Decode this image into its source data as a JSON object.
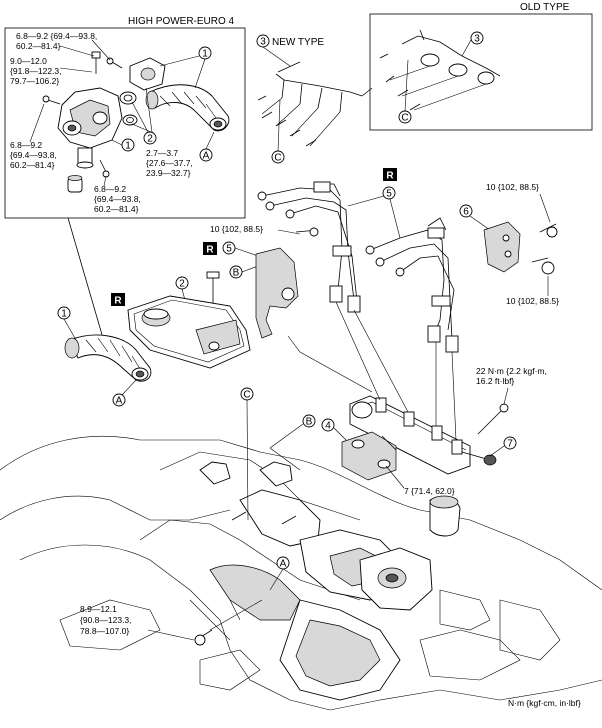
{
  "boxes": {
    "high_power": "HIGH POWER-EURO 4",
    "old_type": "OLD TYPE",
    "new_type": "NEW TYPE"
  },
  "callouts": {
    "c1": "1",
    "c2": "2",
    "c3": "3",
    "c4": "4",
    "c5": "5",
    "c6": "6",
    "c7": "7",
    "cA": "A",
    "cB": "B",
    "cC": "C"
  },
  "replace_mark": "R",
  "torques": {
    "t1a": "6.8—9.2 {69.4—93.8,",
    "t1b": "60.2—81.4}",
    "t2a": "9.0—12.0",
    "t2b": "{91.8—122.3,",
    "t2c": "79.7—106.2}",
    "t3a": "6.8—9.2",
    "t3b": "{69.4—93.8,",
    "t3c": "60.2—81.4}",
    "t4a": "2.7—3.7",
    "t4b": "{27.6—37.7,",
    "t4c": "23.9—32.7}",
    "t5a": "6.8—9.2",
    "t5b": "{69.4—93.8,",
    "t5c": "60.2—81.4}",
    "t6": "10 {102, 88.5}",
    "t7": "10 {102, 88.5}",
    "t8": "10 {102, 88.5}",
    "t9a": "22 N·m {2.2 kgf·m,",
    "t9b": "16.2 ft·lbf}",
    "t10": "7 {71.4, 62.0}",
    "t11a": "8.9—12.1",
    "t11b": "{90.8—123.3,",
    "t11c": "78.8—107.0}"
  },
  "units": "N·m {kgf·cm, in·lbf}"
}
